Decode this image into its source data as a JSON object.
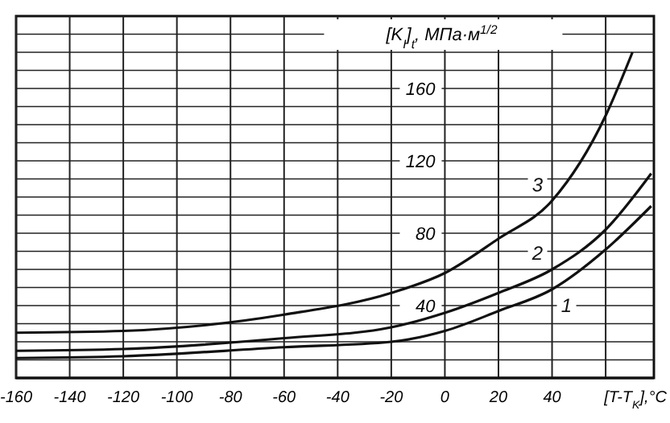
{
  "chart_data": {
    "type": "line",
    "ylabel": "[K$_{I}$]$_{t}$, МПа·м$^{1/2}$",
    "xlabel": "[T-T$_{K}$],°C",
    "xlim": [
      -160,
      78
    ],
    "ylim": [
      0,
      200
    ],
    "xticks": [
      -160,
      -140,
      -120,
      -100,
      -80,
      -60,
      -40,
      -20,
      0,
      20,
      40,
      {
        "value": 60,
        "label": null
      }
    ],
    "yticks": [
      {
        "value": 10,
        "label": null
      },
      {
        "value": 20,
        "label": null
      },
      {
        "value": 30,
        "label": null
      },
      40,
      {
        "value": 50,
        "label": null
      },
      {
        "value": 60,
        "label": null
      },
      {
        "value": 70,
        "label": null
      },
      80,
      {
        "value": 90,
        "label": null
      },
      {
        "value": 100,
        "label": null
      },
      {
        "value": 110,
        "label": null
      },
      120,
      {
        "value": 130,
        "label": null
      },
      {
        "value": 140,
        "label": null
      },
      {
        "value": 150,
        "label": null
      },
      160,
      {
        "value": 170,
        "label": null
      },
      {
        "value": 180,
        "label": null
      },
      {
        "value": 190,
        "label": null
      }
    ],
    "grid": true,
    "marker": "none",
    "line_style": "solid",
    "series": [
      {
        "name": "1",
        "color": "#111111",
        "x": [
          -160,
          -120,
          -60,
          -20,
          0,
          20,
          40,
          60,
          77
        ],
        "values": [
          11,
          12,
          17,
          20,
          26,
          37,
          49,
          71,
          95
        ]
      },
      {
        "name": "2",
        "color": "#111111",
        "x": [
          -160,
          -120,
          -60,
          -20,
          0,
          20,
          40,
          60,
          77
        ],
        "values": [
          15,
          16,
          22,
          28,
          36,
          47,
          60,
          82,
          113
        ]
      },
      {
        "name": "3",
        "color": "#111111",
        "x": [
          -160,
          -120,
          -60,
          -20,
          0,
          20,
          40,
          60,
          70
        ],
        "values": [
          25,
          26,
          35,
          47,
          58,
          77,
          98,
          145,
          180
        ]
      }
    ]
  }
}
